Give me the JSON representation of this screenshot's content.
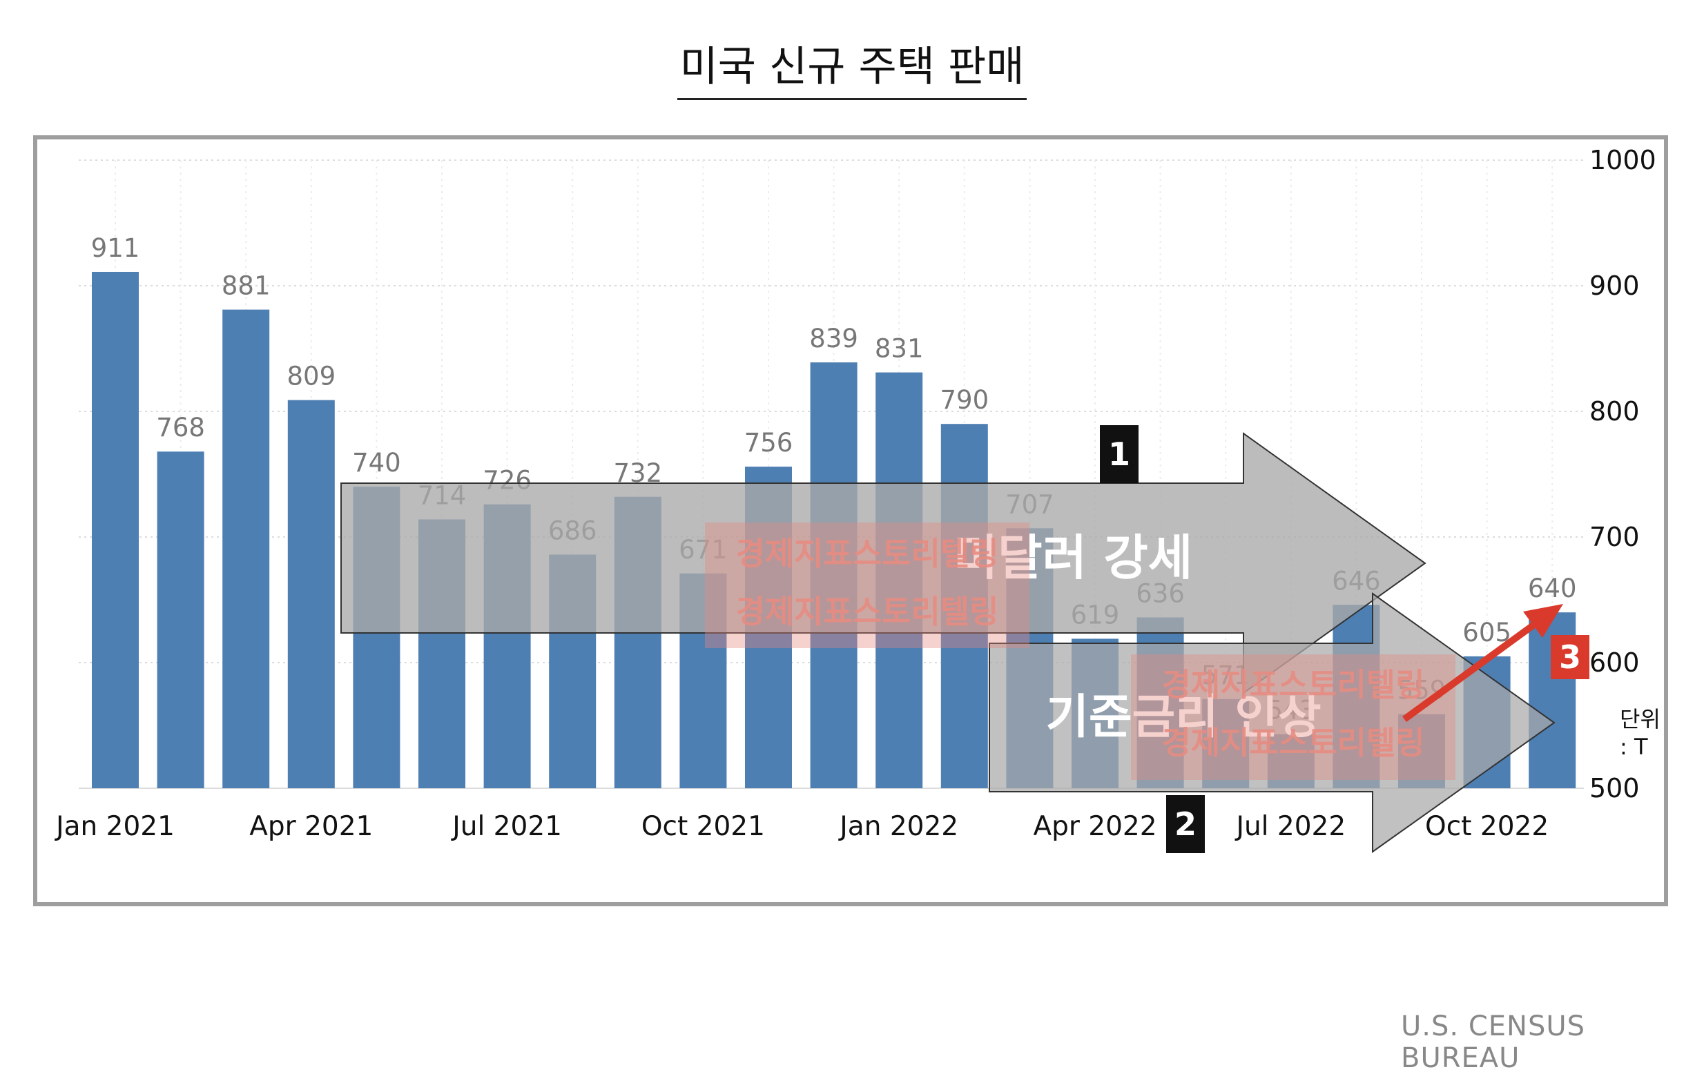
{
  "title": "미국 신규 주택 판매",
  "unit_label": "단위 : T",
  "source": "U.S. CENSUS BUREAU",
  "chart_data": {
    "type": "bar",
    "title": "미국 신규 주택 판매",
    "categories": [
      "Jan 2021",
      "Feb 2021",
      "Mar 2021",
      "Apr 2021",
      "May 2021",
      "Jun 2021",
      "Jul 2021",
      "Aug 2021",
      "Sep 2021",
      "Oct 2021",
      "Nov 2021",
      "Dec 2021",
      "Jan 2022",
      "Feb 2022",
      "Mar 2022",
      "Apr 2022",
      "May 2022",
      "Jun 2022",
      "Jul 2022",
      "Aug 2022",
      "Sep 2022",
      "Oct 2022",
      "Nov 2022"
    ],
    "values": [
      911,
      768,
      881,
      809,
      740,
      714,
      726,
      686,
      732,
      671,
      756,
      839,
      831,
      790,
      707,
      619,
      636,
      571,
      543,
      646,
      559,
      605,
      640
    ],
    "x_tick_labels": [
      "Jan 2021",
      "Apr 2021",
      "Jul 2021",
      "Oct 2021",
      "Jan 2022",
      "Apr 2022",
      "Jul 2022",
      "Oct 2022"
    ],
    "y_ticks": [
      500,
      600,
      700,
      800,
      900,
      1000
    ],
    "ylim": [
      500,
      1000
    ],
    "y_axis_position": "right",
    "grid": true,
    "bar_color": "#4e7fb3"
  },
  "annotations": {
    "arrow1": {
      "badge": "1",
      "text": "미달러 강세"
    },
    "arrow2": {
      "badge": "2",
      "text": "기준금리 인상"
    },
    "arrow3": {
      "badge": "3"
    },
    "watermark": "경제지표스토리텔링"
  },
  "colors": {
    "badge_dark": "#111111",
    "badge_red": "#d93a2b",
    "arrow_gray": "#a9a9a9"
  }
}
